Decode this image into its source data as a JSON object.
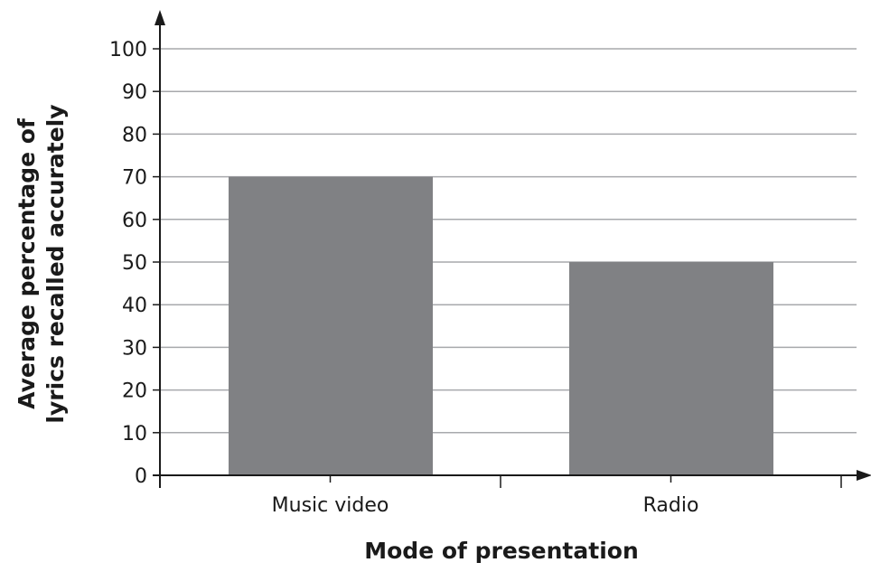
{
  "chart_data": {
    "type": "bar",
    "categories": [
      "Music video",
      "Radio"
    ],
    "values": [
      70,
      50
    ],
    "title": "",
    "xlabel": "Mode of presentation",
    "ylabel_lines": [
      "Average percentage of",
      "lyrics recalled accurately"
    ],
    "ylim": [
      0,
      100
    ],
    "yticks": [
      "0",
      "10",
      "20",
      "30",
      "40",
      "50",
      "60",
      "70",
      "80",
      "90",
      "100"
    ],
    "grid": true,
    "legend": "none"
  },
  "colors": {
    "bar": "#808184",
    "grid": "#a7a9ac",
    "axis": "#1a1a1a"
  }
}
